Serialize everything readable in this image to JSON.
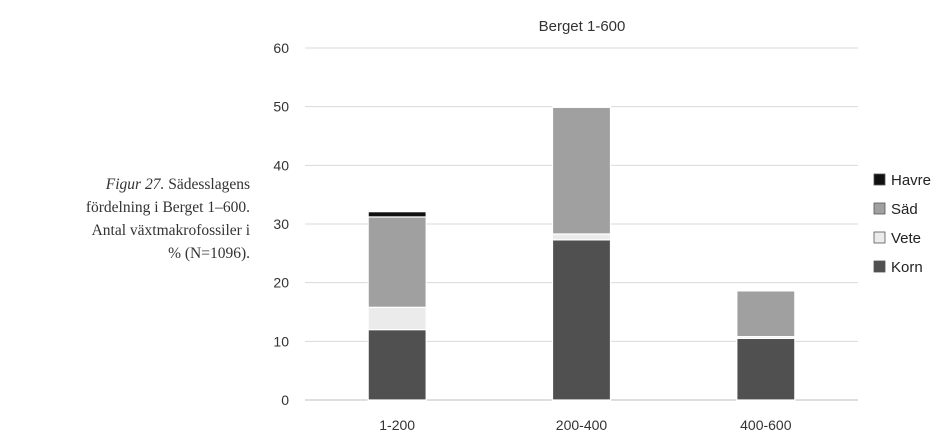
{
  "caption": {
    "figure_label": "Figur 27.",
    "line1_rest": "Sädesslagens",
    "line2": "fördelning i Berget 1–600.",
    "line3": "Antal växtmakrofossiler i",
    "line4": "% (N=1096)."
  },
  "chart_data": {
    "type": "bar",
    "stacked": true,
    "title": "Berget 1-600",
    "xlabel": "",
    "ylabel": "",
    "categories": [
      "1-200",
      "200-400",
      "400-600"
    ],
    "ylim": [
      0,
      60
    ],
    "yticks": [
      0,
      10,
      20,
      30,
      40,
      50,
      60
    ],
    "grid": true,
    "legend_position": "right",
    "series": [
      {
        "name": "Korn",
        "color": "#505050",
        "values": [
          12,
          27.3,
          10.5
        ]
      },
      {
        "name": "Vete",
        "color": "#ebebeb",
        "values": [
          3.8,
          1.0,
          0.3
        ]
      },
      {
        "name": "Säd",
        "color": "#a0a0a0",
        "values": [
          15.4,
          21.6,
          7.8
        ]
      },
      {
        "name": "Havre",
        "color": "#111111",
        "values": [
          0.9,
          0.1,
          0.0
        ]
      }
    ],
    "legend_order": [
      "Havre",
      "Säd",
      "Vete",
      "Korn"
    ]
  }
}
